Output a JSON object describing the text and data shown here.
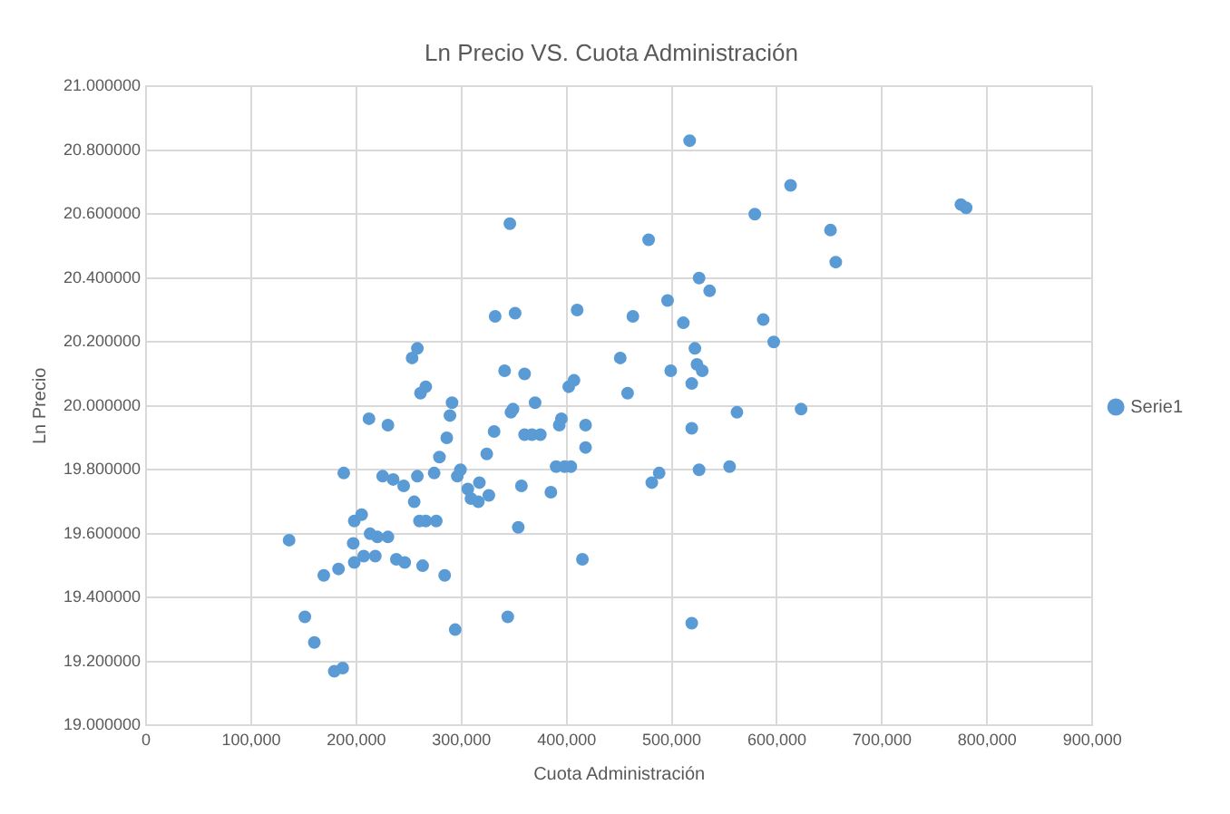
{
  "chart_data": {
    "type": "scatter",
    "title": "Ln Precio VS. Cuota Administración",
    "xlabel": "Cuota Administración",
    "ylabel": "Ln Precio",
    "marker": "circle",
    "grid": true,
    "legend": "right",
    "xlim": [
      0,
      900000
    ],
    "xticks": [
      0,
      {
        "value": 100000,
        "label": "100,000"
      },
      {
        "value": 200000,
        "label": "200,000"
      },
      {
        "value": 300000,
        "label": "300,000"
      },
      {
        "value": 400000,
        "label": "400,000"
      },
      {
        "value": 500000,
        "label": "500,000"
      },
      {
        "value": 600000,
        "label": "600,000"
      },
      {
        "value": 700000,
        "label": "700,000"
      },
      {
        "value": 800000,
        "label": "800,000"
      },
      {
        "value": 900000,
        "label": "900,000"
      }
    ],
    "ylim": [
      19,
      21
    ],
    "yticks": [
      {
        "value": 19,
        "label": "19.000000"
      },
      {
        "value": 19.2,
        "label": "19.200000"
      },
      {
        "value": 19.4,
        "label": "19.400000"
      },
      {
        "value": 19.6,
        "label": "19.600000"
      },
      {
        "value": 19.8,
        "label": "19.800000"
      },
      {
        "value": 20,
        "label": "20.000000"
      },
      {
        "value": 20.2,
        "label": "20.200000"
      },
      {
        "value": 20.4,
        "label": "20.400000"
      },
      {
        "value": 20.6,
        "label": "20.600000"
      },
      {
        "value": 20.8,
        "label": "20.800000"
      },
      {
        "value": 21,
        "label": "21.000000"
      }
    ],
    "series": [
      {
        "name": "Serie1",
        "color": "#5b9bd5",
        "x": [
          136000,
          151000,
          160000,
          169000,
          179000,
          187000,
          183000,
          188000,
          198000,
          205000,
          197000,
          198000,
          207000,
          213000,
          220000,
          230000,
          212000,
          230000,
          225000,
          235000,
          245000,
          218000,
          238000,
          246000,
          253000,
          258000,
          261000,
          266000,
          258000,
          255000,
          260000,
          266000,
          263000,
          276000,
          274000,
          279000,
          286000,
          289000,
          291000,
          284000,
          294000,
          296000,
          299000,
          306000,
          309000,
          316000,
          326000,
          317000,
          324000,
          331000,
          332000,
          344000,
          346000,
          341000,
          351000,
          347000,
          349000,
          360000,
          360000,
          357000,
          354000,
          370000,
          375000,
          367000,
          390000,
          393000,
          385000,
          395000,
          398000,
          402000,
          407000,
          404000,
          410000,
          418000,
          418000,
          415000,
          451000,
          458000,
          463000,
          478000,
          481000,
          488000,
          496000,
          499000,
          511000,
          517000,
          519000,
          519000,
          522000,
          519000,
          526000,
          526000,
          536000,
          524000,
          529000,
          555000,
          562000,
          579000,
          587000,
          597000,
          613000,
          623000,
          651000,
          656000,
          775000,
          780000
        ],
        "values": [
          19.58,
          19.34,
          19.26,
          19.47,
          19.17,
          19.18,
          19.49,
          19.79,
          19.64,
          19.66,
          19.57,
          19.51,
          19.53,
          19.6,
          19.59,
          19.59,
          19.96,
          19.94,
          19.78,
          19.77,
          19.75,
          19.53,
          19.52,
          19.51,
          20.15,
          20.18,
          20.04,
          20.06,
          19.78,
          19.7,
          19.64,
          19.64,
          19.5,
          19.64,
          19.79,
          19.84,
          19.9,
          19.97,
          20.01,
          19.47,
          19.3,
          19.78,
          19.8,
          19.74,
          19.71,
          19.7,
          19.72,
          19.76,
          19.85,
          19.92,
          20.28,
          19.34,
          20.57,
          20.11,
          20.29,
          19.98,
          19.99,
          20.1,
          19.91,
          19.75,
          19.62,
          20.01,
          19.91,
          19.91,
          19.81,
          19.94,
          19.73,
          19.96,
          19.81,
          20.06,
          20.08,
          19.81,
          20.3,
          19.94,
          19.87,
          19.52,
          20.15,
          20.04,
          20.28,
          20.52,
          19.76,
          19.79,
          20.33,
          20.11,
          20.26,
          20.83,
          19.93,
          19.32,
          20.18,
          20.07,
          19.8,
          20.4,
          20.36,
          20.13,
          20.11,
          19.81,
          19.98,
          20.6,
          20.27,
          20.2,
          20.69,
          19.99,
          20.55,
          20.45,
          20.63,
          20.62
        ]
      }
    ]
  }
}
